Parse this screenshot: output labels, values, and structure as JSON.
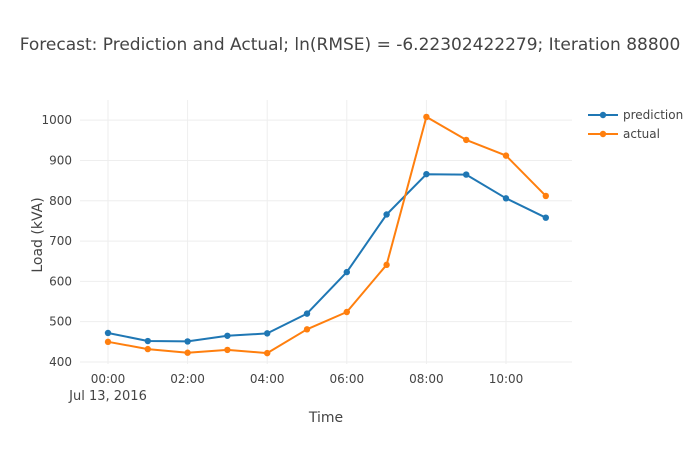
{
  "chart_data": {
    "type": "line",
    "title": "Forecast: Prediction and Actual; ln(RMSE) = -6.22302422279; Iteration 88800",
    "xlabel": "Time",
    "ylabel": "Load (kVA)",
    "date_label": "Jul 13, 2016",
    "x": [
      "00:00",
      "01:00",
      "02:00",
      "03:00",
      "04:00",
      "05:00",
      "06:00",
      "07:00",
      "08:00",
      "09:00",
      "10:00",
      "11:00"
    ],
    "x_tick_labels": [
      "00:00",
      "02:00",
      "04:00",
      "06:00",
      "08:00",
      "10:00"
    ],
    "y_ticks": [
      400,
      500,
      600,
      700,
      800,
      900,
      1000
    ],
    "ylim": [
      395,
      1050
    ],
    "grid": true,
    "legend_position": "top-right",
    "series": [
      {
        "name": "prediction",
        "color": "#1f77b4",
        "values": [
          472,
          452,
          451,
          465,
          471,
          520,
          623,
          766,
          866,
          865,
          806,
          758
        ]
      },
      {
        "name": "actual",
        "color": "#ff7f0e",
        "values": [
          450,
          432,
          423,
          430,
          422,
          481,
          524,
          641,
          1008,
          951,
          912,
          812
        ]
      }
    ]
  }
}
